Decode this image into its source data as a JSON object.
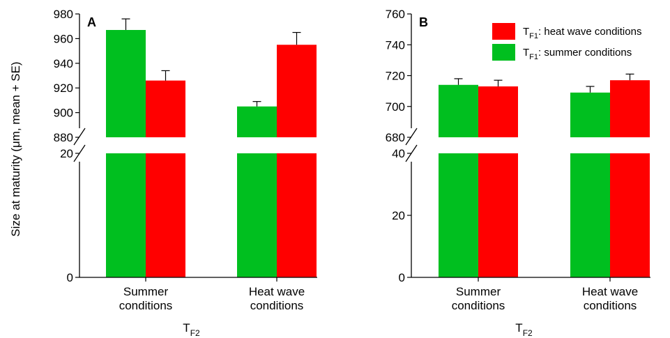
{
  "ylabel": "Size at maturity (μm, mean + SE)",
  "colors": {
    "summer": "#00bf1f",
    "heat": "#ff0000"
  },
  "legend": [
    {
      "series": "heat",
      "base": "T",
      "sub": "F1",
      "text": ": heat wave conditions"
    },
    {
      "series": "summer",
      "base": "T",
      "sub": "F1",
      "text": ": summer conditions"
    }
  ],
  "chart_data": [
    {
      "type": "bar",
      "panel": "A",
      "x_title": {
        "base": "T",
        "sub": "F2"
      },
      "categories": [
        "Summer conditions",
        "Heat wave conditions"
      ],
      "category_lines": [
        [
          "Summer",
          "conditions"
        ],
        [
          "Heat wave",
          "conditions"
        ]
      ],
      "series": [
        {
          "key": "summer",
          "values": [
            967,
            905
          ],
          "se": [
            9,
            4
          ]
        },
        {
          "key": "heat",
          "values": [
            926,
            955
          ],
          "se": [
            8,
            10
          ]
        }
      ],
      "axis_break": true,
      "ylim_lower": [
        0,
        20
      ],
      "lower_ticks": [
        "0",
        "20"
      ],
      "ylim_upper": [
        880,
        980
      ],
      "upper_ticks": [
        "880",
        "900",
        "920",
        "940",
        "960",
        "980"
      ],
      "grid": false
    },
    {
      "type": "bar",
      "panel": "B",
      "x_title": {
        "base": "T",
        "sub": "F2"
      },
      "categories": [
        "Summer conditions",
        "Heat wave conditions"
      ],
      "category_lines": [
        [
          "Summer",
          "conditions"
        ],
        [
          "Heat wave",
          "conditions"
        ]
      ],
      "series": [
        {
          "key": "summer",
          "values": [
            714,
            709
          ],
          "se": [
            4,
            4
          ]
        },
        {
          "key": "heat",
          "values": [
            713,
            717
          ],
          "se": [
            4,
            4
          ]
        }
      ],
      "axis_break": true,
      "ylim_lower": [
        0,
        40
      ],
      "lower_ticks": [
        "0",
        "20",
        "40"
      ],
      "ylim_upper": [
        680,
        760
      ],
      "upper_ticks": [
        "680",
        "700",
        "720",
        "740",
        "760"
      ],
      "grid": false,
      "legend_position": "top-right"
    }
  ]
}
